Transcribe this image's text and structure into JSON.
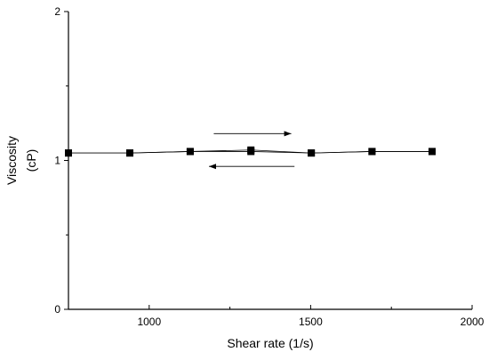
{
  "chart_data": {
    "type": "line",
    "xlabel": "Shear rate (1/s)",
    "ylabel_line1": "Viscosity",
    "ylabel_line2": "(cP)",
    "xlim": [
      750,
      2000
    ],
    "ylim": [
      0,
      2
    ],
    "x_ticks": [
      1000,
      1500,
      2000
    ],
    "y_ticks": [
      0,
      1,
      2
    ],
    "grid": false,
    "legend": "none",
    "series": [
      {
        "marker": "square",
        "color": "#000000",
        "x": [
          750,
          940,
          1127,
          1315,
          1502,
          1690,
          1876
        ],
        "y": [
          1.05,
          1.05,
          1.06,
          1.06,
          1.05,
          1.06,
          1.06
        ]
      },
      {
        "marker": "square",
        "color": "#000000",
        "x": [
          1876,
          1690,
          1502,
          1315,
          1127,
          940,
          750
        ],
        "y": [
          1.06,
          1.06,
          1.05,
          1.07,
          1.06,
          1.05,
          1.05
        ]
      }
    ],
    "annotations": [
      {
        "type": "arrow",
        "direction": "right",
        "x0": 1200,
        "x1": 1440,
        "y": 1.18
      },
      {
        "type": "arrow",
        "direction": "left",
        "x0": 1450,
        "x1": 1185,
        "y": 0.96
      }
    ]
  }
}
